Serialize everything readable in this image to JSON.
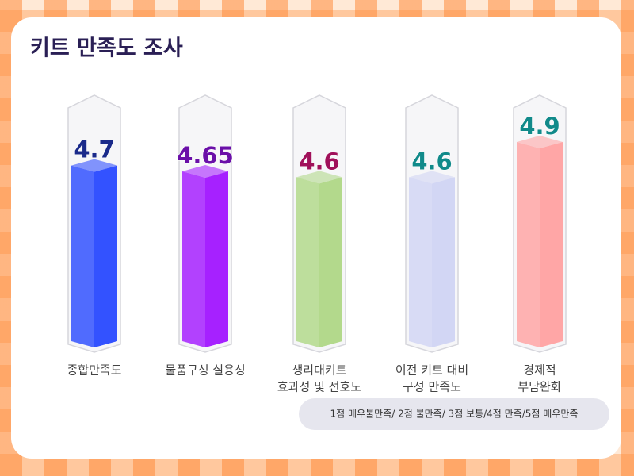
{
  "chart_data": {
    "type": "bar",
    "title": "키트 만족도 조사",
    "categories": [
      [
        "종합만족도"
      ],
      [
        "물품구성 실용성"
      ],
      [
        "생리대키트",
        "효과성 및 선호도"
      ],
      [
        "이전 키트 대비",
        "구성 만족도"
      ],
      [
        "경제적",
        "부담완화"
      ]
    ],
    "values": [
      4.7,
      4.65,
      4.6,
      4.6,
      4.9
    ],
    "colors": [
      "#3352ff",
      "#a621ff",
      "#b3d98c",
      "#d2d6f4",
      "#ffa6a6"
    ],
    "label_colors": [
      "#1a2a8a",
      "#6a0fa8",
      "#a0105a",
      "#118a8a",
      "#118a8a"
    ],
    "ylim": [
      3.2,
      5.3
    ],
    "note": "1점 매우불만족/ 2점 불만족/  3점 보통/4점 만족/5점 매우만족"
  }
}
